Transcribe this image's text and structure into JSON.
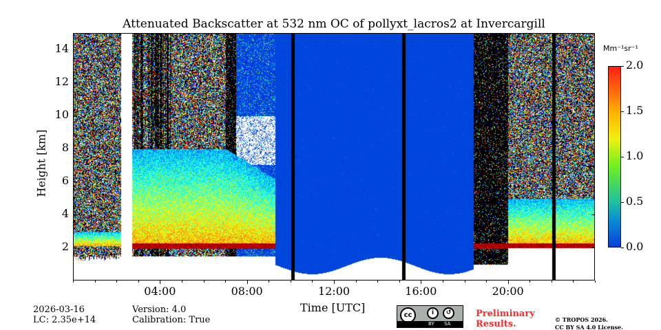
{
  "chart_data": {
    "type": "heatmap",
    "title": "Attenuated Backscatter at 532 nm OC of pollyxt_lacros2 at Invercargill",
    "xlabel": "Time [UTC]",
    "ylabel": "Height [km]",
    "xlim_hours": [
      0,
      24
    ],
    "ylim_km": [
      0,
      15
    ],
    "xticks": [
      "04:00",
      "08:00",
      "12:00",
      "16:00",
      "20:00"
    ],
    "xtick_hours": [
      4,
      8,
      12,
      16,
      20
    ],
    "yticks": [
      "2",
      "4",
      "6",
      "8",
      "10",
      "12",
      "14"
    ],
    "ytick_values": [
      2,
      4,
      6,
      8,
      10,
      12,
      14
    ],
    "colorbar": {
      "label": "Mm⁻¹sr⁻¹",
      "range": [
        0,
        2
      ],
      "ticks": [
        "0.0",
        "0.5",
        "1.0",
        "1.5",
        "2.0"
      ],
      "colormap": "jet"
    },
    "no_data_hours": [
      [
        2.2,
        2.7
      ]
    ],
    "bad_profile_hours": [
      10.1,
      15.2,
      22.1
    ],
    "cloud_layer_hours": [
      9.3,
      18.4
    ],
    "aerosol_layer_top_km": 8,
    "boundary_layer_height_km": 2.1
  },
  "footer": {
    "date": "2026-03-16",
    "lc": "LC: 2.35e+14",
    "version": "Version: 4.0",
    "calibration": "Calibration: True",
    "preliminary": "Preliminary",
    "results": "Results.",
    "copyright": "© TROPOS 2026.",
    "license": "CC BY SA 4.0 License.",
    "cc_by": "BY",
    "cc_sa": "SA",
    "cc": "cc"
  },
  "colors": {
    "preliminary": "#ff2a2a"
  }
}
